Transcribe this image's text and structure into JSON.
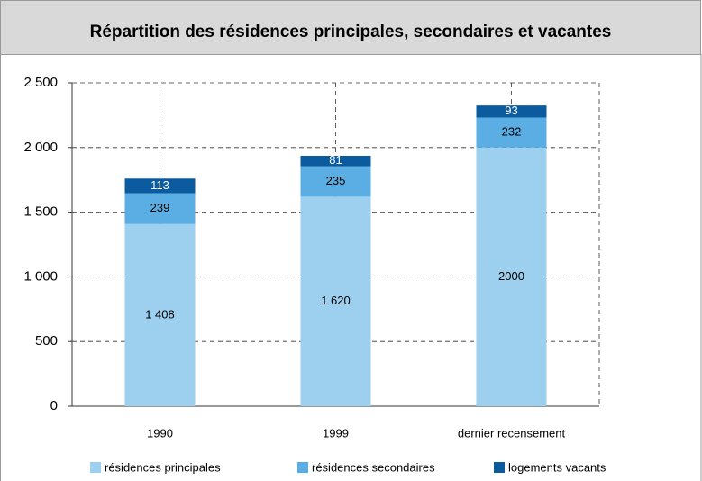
{
  "chart_data": {
    "type": "stacked_bar",
    "title": "Répartition des résidences principales, secondaires et vacantes",
    "categories": [
      "1990",
      "1999",
      "dernier recensement"
    ],
    "series": [
      {
        "name": "résidences principales",
        "color": "#9dcfee",
        "values": [
          1408,
          1620,
          2000
        ],
        "value_labels": [
          "1 408",
          "1 620",
          "2000"
        ],
        "label_color": "#000000"
      },
      {
        "name": "résidences secondaires",
        "color": "#5aaee3",
        "values": [
          239,
          235,
          232
        ],
        "label_color": "#000000"
      },
      {
        "name": "logements vacants",
        "color": "#0b5b9e",
        "values": [
          113,
          81,
          93
        ],
        "label_color": "#ffffff"
      }
    ],
    "ylim": [
      0,
      2500
    ],
    "yticks": [
      0,
      500,
      {
        "value": 1000,
        "label": "1 000"
      },
      {
        "value": 1500,
        "label": "1 500"
      },
      {
        "value": 2000,
        "label": "2 000"
      },
      {
        "value": 2500,
        "label": "2 500"
      }
    ],
    "grid": true,
    "legend": "bottom"
  }
}
